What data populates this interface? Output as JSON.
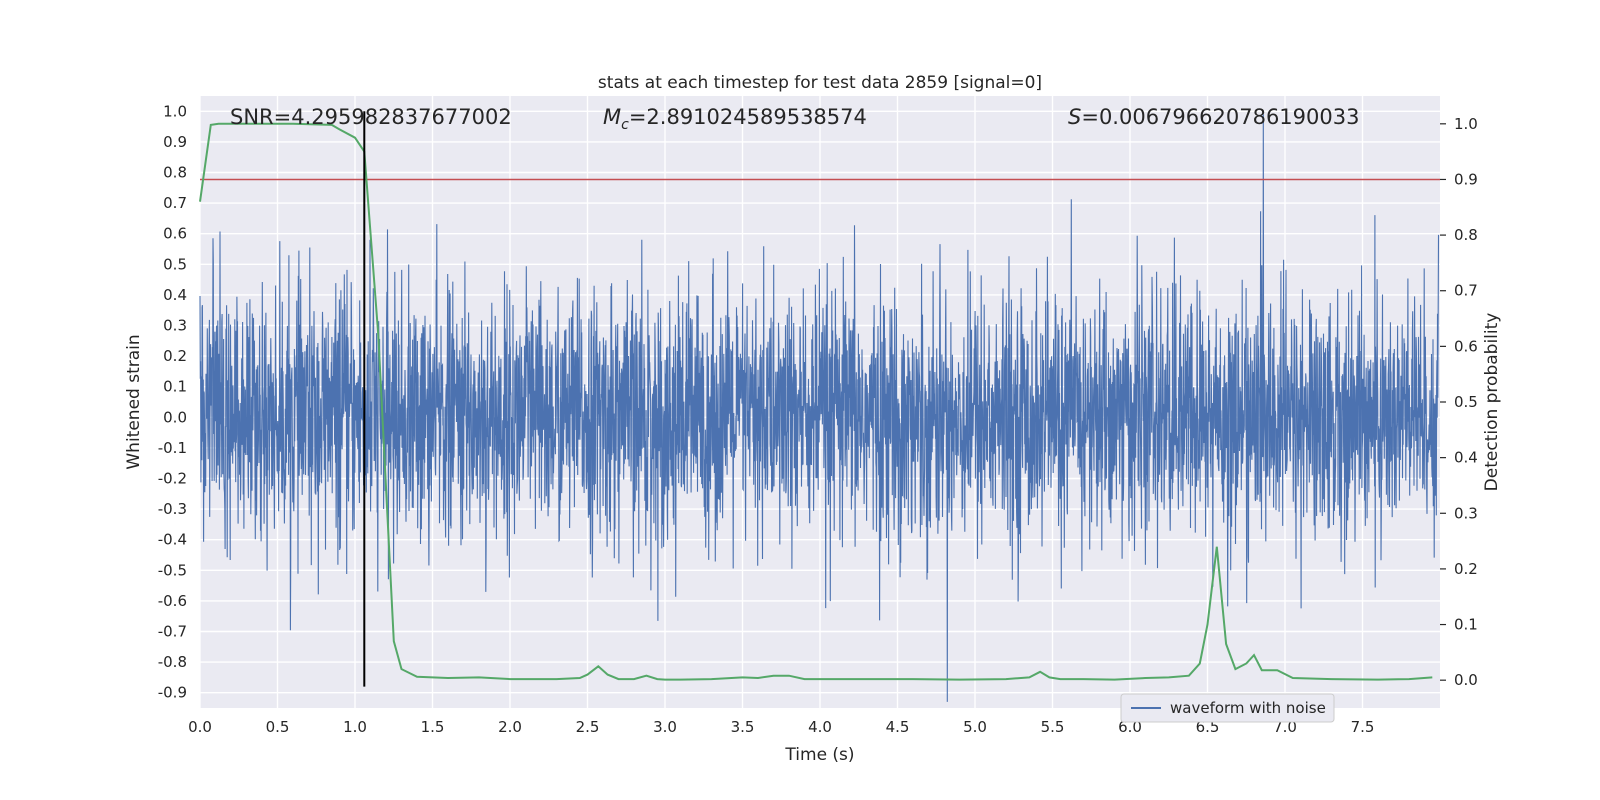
{
  "chart_data": {
    "type": "line",
    "title": "stats at each timestep for test data 2859 [signal=0]",
    "xlabel": "Time (s)",
    "ylabel_left": "Whitened strain",
    "ylabel_right": "Detection probability",
    "xlim": [
      0.0,
      8.0
    ],
    "ylim_left": [
      -0.95,
      1.05
    ],
    "ylim_right": [
      -0.05,
      1.05
    ],
    "x_ticks": [
      "0.0",
      "0.5",
      "1.0",
      "1.5",
      "2.0",
      "2.5",
      "3.0",
      "3.5",
      "4.0",
      "4.5",
      "5.0",
      "5.5",
      "6.0",
      "6.5",
      "7.0",
      "7.5"
    ],
    "y_ticks_left": [
      "1.0",
      "0.9",
      "0.8",
      "0.7",
      "0.6",
      "0.5",
      "0.4",
      "0.3",
      "0.2",
      "0.1",
      "0.0",
      "-0.1",
      "-0.2",
      "-0.3",
      "-0.4",
      "-0.5",
      "-0.6",
      "-0.7",
      "-0.8",
      "-0.9"
    ],
    "y_ticks_right": [
      "1.0",
      "0.9",
      "0.8",
      "0.7",
      "0.6",
      "0.5",
      "0.4",
      "0.3",
      "0.2",
      "0.1",
      "0.0"
    ],
    "annotations": {
      "snr": "SNR=4.295982837677002",
      "mc_symbol": "M",
      "mc_sub": "c",
      "mc_value": "=2.891024589538574",
      "s_symbol": "S",
      "s_value": "=0.006796620786190033"
    },
    "threshold_right": 0.9,
    "threshold_color": "#c44e52",
    "marker_time": 1.06,
    "grid": true,
    "legend_position": "lower-right",
    "series": [
      {
        "name": "waveform with noise",
        "axis": "left",
        "color": "#4c72b0",
        "envelope": "dense noise, typically between -0.5 and 0.5, peaks to about ±0.98"
      },
      {
        "axis": "right",
        "color": "#55a868",
        "x": [
          0.0,
          0.07,
          0.12,
          0.3,
          0.6,
          0.85,
          0.9,
          1.0,
          1.06,
          1.15,
          1.25,
          1.3,
          1.4,
          1.6,
          1.8,
          2.0,
          2.3,
          2.45,
          2.5,
          2.57,
          2.63,
          2.7,
          2.8,
          2.88,
          2.95,
          3.0,
          3.1,
          3.3,
          3.5,
          3.6,
          3.7,
          3.8,
          3.9,
          4.0,
          4.3,
          4.6,
          4.9,
          5.2,
          5.35,
          5.42,
          5.48,
          5.55,
          5.7,
          5.9,
          6.1,
          6.25,
          6.38,
          6.45,
          6.5,
          6.56,
          6.62,
          6.68,
          6.75,
          6.8,
          6.85,
          6.95,
          7.05,
          7.3,
          7.6,
          7.8,
          7.95
        ],
        "values": [
          0.86,
          0.998,
          1.0,
          1.0,
          1.0,
          0.998,
          0.99,
          0.975,
          0.95,
          0.62,
          0.07,
          0.02,
          0.006,
          0.004,
          0.005,
          0.002,
          0.002,
          0.004,
          0.01,
          0.025,
          0.01,
          0.002,
          0.002,
          0.008,
          0.002,
          0.001,
          0.001,
          0.002,
          0.005,
          0.004,
          0.008,
          0.008,
          0.002,
          0.002,
          0.002,
          0.002,
          0.001,
          0.002,
          0.005,
          0.015,
          0.005,
          0.002,
          0.002,
          0.001,
          0.004,
          0.005,
          0.008,
          0.03,
          0.1,
          0.24,
          0.065,
          0.02,
          0.03,
          0.045,
          0.018,
          0.018,
          0.004,
          0.002,
          0.001,
          0.002,
          0.005
        ]
      }
    ]
  }
}
